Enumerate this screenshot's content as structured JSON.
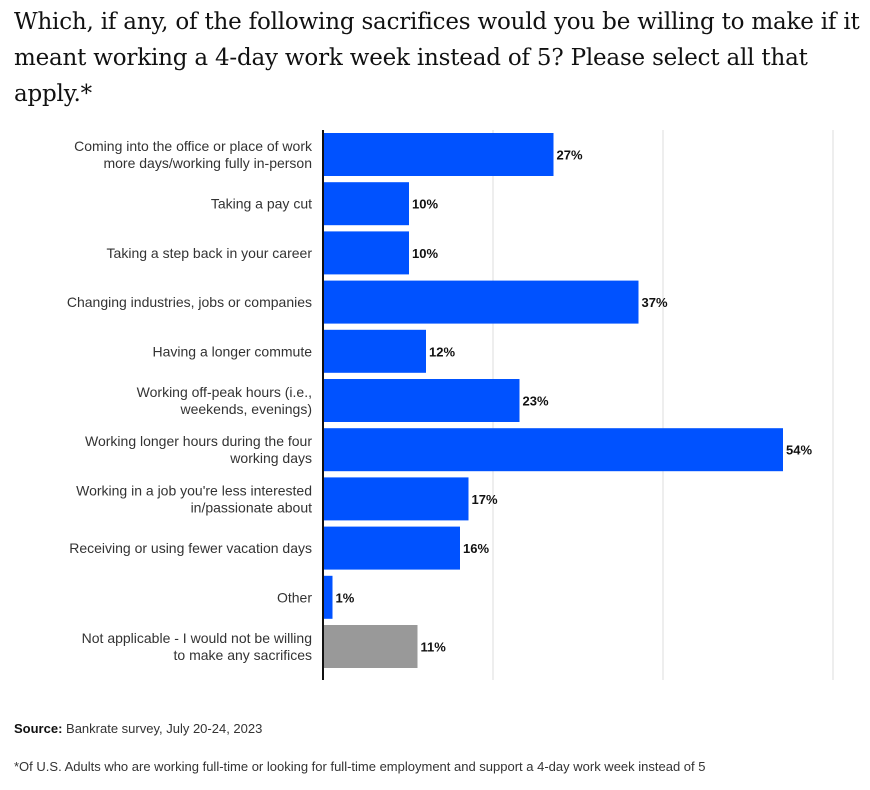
{
  "chart_data": {
    "type": "bar",
    "orientation": "horizontal",
    "title": "Which, if any, of the following sacrifices would you be willing to make if it meant working a 4-day work week instead of 5? Please select all that apply.*",
    "categories": [
      [
        "Coming into the office or place of work",
        "more days/working fully in-person"
      ],
      [
        "Taking a pay cut"
      ],
      [
        "Taking a step back in your career"
      ],
      [
        "Changing industries, jobs or companies"
      ],
      [
        "Having a longer commute"
      ],
      [
        "Working off-peak hours (i.e.,",
        "weekends, evenings)"
      ],
      [
        "Working longer hours during the four",
        "working days"
      ],
      [
        "Working in a job you're less interested",
        "in/passionate about"
      ],
      [
        "Receiving or using fewer vacation days"
      ],
      [
        "Other"
      ],
      [
        "Not applicable - I would not be willing",
        "to make any sacrifices"
      ]
    ],
    "values": [
      27,
      10,
      10,
      37,
      12,
      23,
      54,
      17,
      16,
      1,
      11
    ],
    "value_labels": [
      "27%",
      "10%",
      "10%",
      "37%",
      "12%",
      "23%",
      "54%",
      "17%",
      "16%",
      "1%",
      "11%"
    ],
    "bar_colors": [
      "#0052ff",
      "#0052ff",
      "#0052ff",
      "#0052ff",
      "#0052ff",
      "#0052ff",
      "#0052ff",
      "#0052ff",
      "#0052ff",
      "#0052ff",
      "#999999"
    ],
    "xlim": [
      0,
      60
    ],
    "gridlines_at": [
      20,
      40,
      60
    ],
    "grid": true,
    "legend": false
  },
  "source_label": "Source:",
  "source_text": "Bankrate survey, July 20-24, 2023",
  "footnote": "*Of U.S. Adults who are working full-time or looking for full-time employment and support a 4-day work week instead of 5"
}
